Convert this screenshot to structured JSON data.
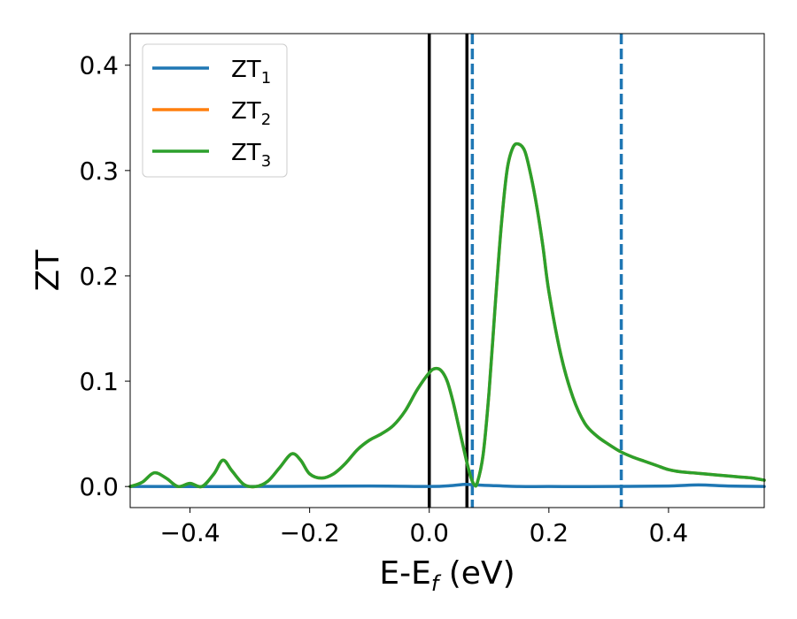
{
  "chart_data": {
    "type": "line",
    "xlabel": "E-E",
    "xlabel_sub": "f",
    "xlabel_unit": " (eV)",
    "ylabel": "ZT",
    "xlim": [
      -0.5,
      0.56
    ],
    "ylim": [
      -0.02,
      0.43
    ],
    "xticks": [
      -0.4,
      -0.2,
      0.0,
      0.2,
      0.4
    ],
    "xtick_labels": [
      "−0.4",
      "−0.2",
      "0.0",
      "0.2",
      "0.4"
    ],
    "yticks": [
      0.0,
      0.1,
      0.2,
      0.3,
      0.4
    ],
    "ytick_labels": [
      "0.0",
      "0.1",
      "0.2",
      "0.3",
      "0.4"
    ],
    "grid": false,
    "legend_position": "top-left",
    "series": [
      {
        "name": "ZT",
        "name_sub": "1",
        "color": "#1f77b4",
        "x": [
          -0.5,
          -0.3,
          -0.1,
          0.0,
          0.04,
          0.06,
          0.08,
          0.1,
          0.15,
          0.2,
          0.3,
          0.4,
          0.45,
          0.5,
          0.56
        ],
        "y": [
          0.0,
          0.0,
          0.0005,
          0.0,
          0.001,
          0.002,
          0.0015,
          0.001,
          0.0,
          0.0,
          0.0,
          0.0005,
          0.0015,
          0.0005,
          0.0
        ]
      },
      {
        "name": "ZT",
        "name_sub": "2",
        "color": "#ff7f0e",
        "x": [
          -0.5,
          -0.48,
          -0.46,
          -0.44,
          -0.42,
          -0.4,
          -0.38,
          -0.36,
          -0.345,
          -0.33,
          -0.31,
          -0.29,
          -0.27,
          -0.25,
          -0.23,
          -0.215,
          -0.2,
          -0.18,
          -0.16,
          -0.14,
          -0.12,
          -0.1,
          -0.08,
          -0.06,
          -0.04,
          -0.02,
          0.0,
          0.01,
          0.02,
          0.03,
          0.04,
          0.05,
          0.06,
          0.065,
          0.07,
          0.075,
          0.08,
          0.09,
          0.1,
          0.11,
          0.12,
          0.13,
          0.14,
          0.15,
          0.16,
          0.17,
          0.18,
          0.19,
          0.2,
          0.22,
          0.24,
          0.26,
          0.28,
          0.3,
          0.32,
          0.34,
          0.36,
          0.38,
          0.4,
          0.42,
          0.44,
          0.46,
          0.48,
          0.5,
          0.52,
          0.54,
          0.56
        ],
        "y": [
          0.0,
          0.004,
          0.013,
          0.008,
          0.0,
          0.003,
          0.0,
          0.012,
          0.025,
          0.015,
          0.002,
          0.0,
          0.005,
          0.018,
          0.031,
          0.025,
          0.012,
          0.008,
          0.012,
          0.022,
          0.035,
          0.044,
          0.05,
          0.058,
          0.072,
          0.092,
          0.108,
          0.112,
          0.11,
          0.1,
          0.08,
          0.055,
          0.03,
          0.018,
          0.008,
          0.002,
          0.003,
          0.03,
          0.09,
          0.17,
          0.245,
          0.3,
          0.322,
          0.325,
          0.318,
          0.295,
          0.265,
          0.228,
          0.185,
          0.125,
          0.085,
          0.06,
          0.048,
          0.04,
          0.033,
          0.028,
          0.024,
          0.02,
          0.016,
          0.014,
          0.013,
          0.012,
          0.011,
          0.01,
          0.009,
          0.008,
          0.006
        ]
      },
      {
        "name": "ZT",
        "name_sub": "3",
        "color": "#2ca02c",
        "x": [
          -0.5,
          -0.48,
          -0.46,
          -0.44,
          -0.42,
          -0.4,
          -0.38,
          -0.36,
          -0.345,
          -0.33,
          -0.31,
          -0.29,
          -0.27,
          -0.25,
          -0.23,
          -0.215,
          -0.2,
          -0.18,
          -0.16,
          -0.14,
          -0.12,
          -0.1,
          -0.08,
          -0.06,
          -0.04,
          -0.02,
          0.0,
          0.01,
          0.02,
          0.03,
          0.04,
          0.05,
          0.06,
          0.065,
          0.07,
          0.075,
          0.08,
          0.09,
          0.1,
          0.11,
          0.12,
          0.13,
          0.14,
          0.15,
          0.16,
          0.17,
          0.18,
          0.19,
          0.2,
          0.22,
          0.24,
          0.26,
          0.28,
          0.3,
          0.32,
          0.34,
          0.36,
          0.38,
          0.4,
          0.42,
          0.44,
          0.46,
          0.48,
          0.5,
          0.52,
          0.54,
          0.56
        ],
        "y": [
          0.0,
          0.004,
          0.013,
          0.008,
          0.0,
          0.003,
          0.0,
          0.012,
          0.025,
          0.015,
          0.002,
          0.0,
          0.005,
          0.018,
          0.031,
          0.025,
          0.012,
          0.008,
          0.012,
          0.022,
          0.035,
          0.044,
          0.05,
          0.058,
          0.072,
          0.092,
          0.108,
          0.112,
          0.11,
          0.1,
          0.08,
          0.055,
          0.03,
          0.018,
          0.008,
          0.002,
          0.003,
          0.03,
          0.09,
          0.17,
          0.245,
          0.3,
          0.322,
          0.325,
          0.318,
          0.295,
          0.265,
          0.228,
          0.185,
          0.125,
          0.085,
          0.06,
          0.048,
          0.04,
          0.033,
          0.028,
          0.024,
          0.02,
          0.016,
          0.014,
          0.013,
          0.012,
          0.011,
          0.01,
          0.009,
          0.008,
          0.006
        ]
      }
    ],
    "vlines": [
      {
        "x": 0.0,
        "color": "#000000",
        "style": "solid"
      },
      {
        "x": 0.063,
        "color": "#000000",
        "style": "solid"
      },
      {
        "x": 0.072,
        "color": "#1f77b4",
        "style": "dashed"
      },
      {
        "x": 0.321,
        "color": "#1f77b4",
        "style": "dashed"
      }
    ]
  }
}
